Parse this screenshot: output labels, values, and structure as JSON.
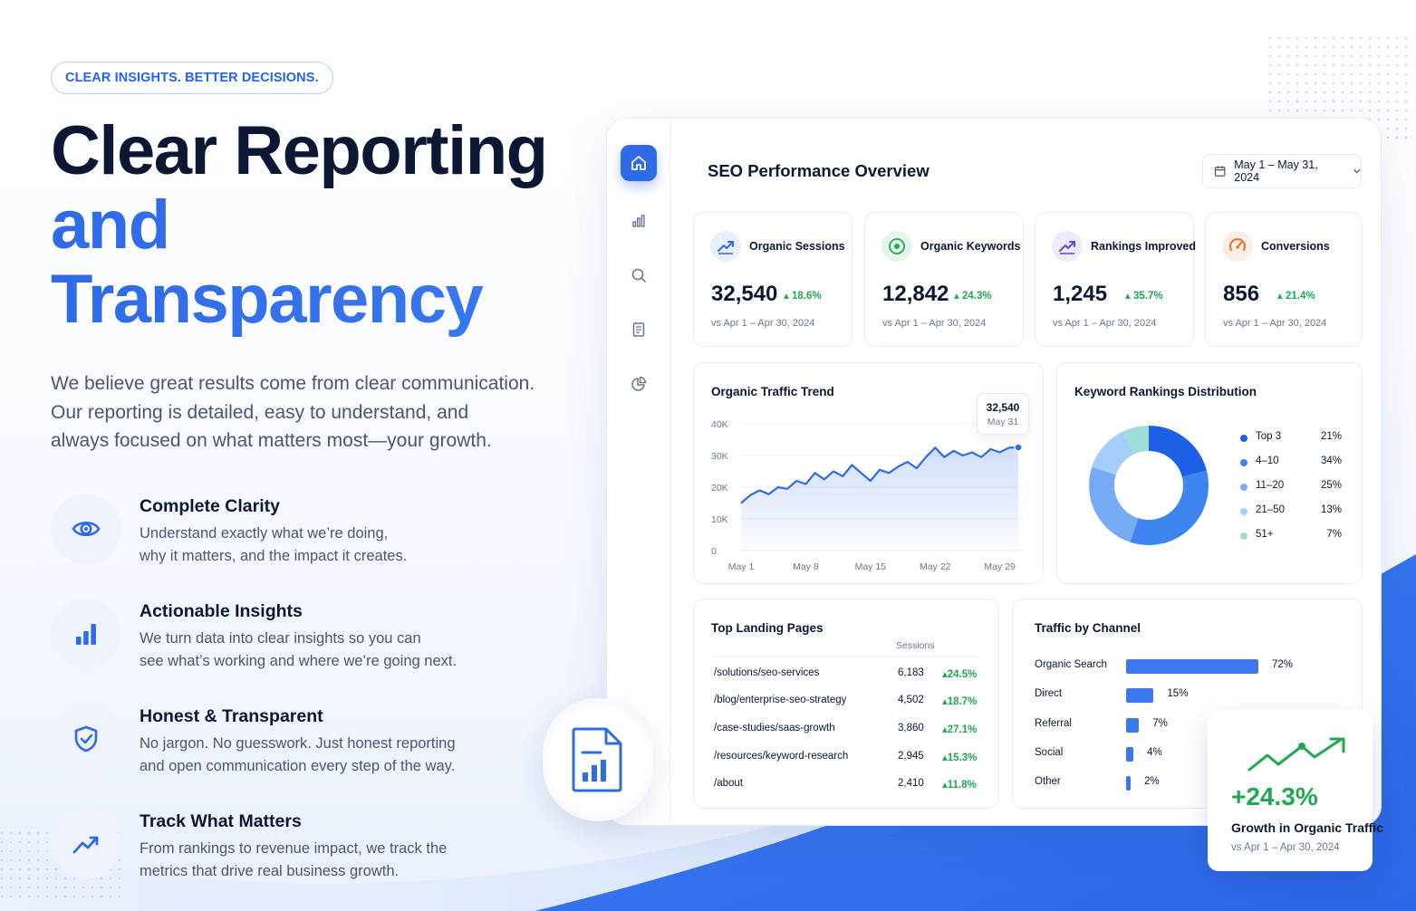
{
  "hero": {
    "tagline": "CLEAR INSIGHTS. BETTER DECISIONS.",
    "headline_line1": "Clear Reporting",
    "headline_line2": "and Transparency",
    "intro_lines": [
      "We believe great results come from clear communication.",
      "Our reporting is detailed, easy to understand, and",
      "always focused on what matters most—your growth."
    ]
  },
  "features": [
    {
      "icon": "eye-icon",
      "title": "Complete Clarity",
      "desc": [
        "Understand exactly what we’re doing,",
        "why it matters, and the impact it creates."
      ]
    },
    {
      "icon": "bar-chart-icon",
      "title": "Actionable Insights",
      "desc": [
        "We turn data into clear insights so you can",
        "see what’s working and where we’re going next."
      ]
    },
    {
      "icon": "shield-check-icon",
      "title": "Honest & Transparent",
      "desc": [
        "No jargon. No guesswork. Just honest reporting",
        "and open communication every step of the way."
      ]
    },
    {
      "icon": "trend-up-icon",
      "title": "Track What Matters",
      "desc": [
        "From rankings to revenue impact, we track the",
        "metrics that drive real business growth."
      ]
    }
  ],
  "dashboard": {
    "title": "SEO Performance Overview",
    "date_range": "May 1 – May 31, 2024",
    "sidebar_icons": [
      "home-icon",
      "bar-chart-icon",
      "search-icon",
      "document-icon",
      "pie-chart-icon"
    ],
    "kpis": [
      {
        "label": "Organic Sessions",
        "value": "32,540",
        "delta": "18.6%",
        "sub": "vs Apr 1 – Apr 30, 2024",
        "icon": "trend-up-icon",
        "color": "#2f6ae8"
      },
      {
        "label": "Organic Keywords",
        "value": "12,842",
        "delta": "24.3%",
        "sub": "vs Apr 1 – Apr 30, 2024",
        "icon": "target-icon",
        "color": "#1fa84f"
      },
      {
        "label": "Rankings Improved",
        "value": "1,245",
        "delta": "35.7%",
        "sub": "vs Apr 1 – Apr 30, 2024",
        "icon": "trend-up-icon",
        "color": "#5b4fe0"
      },
      {
        "label": "Conversions",
        "value": "856",
        "delta": "21.4%",
        "sub": "vs Apr 1 – Apr 30, 2024",
        "icon": "gauge-icon",
        "color": "#f06a26"
      }
    ],
    "traffic_card_title": "Organic Traffic Trend",
    "tooltip": {
      "value": "32,540",
      "date": "May 31"
    },
    "rankings_card_title": "Keyword Rankings Distribution",
    "landing": {
      "title": "Top Landing Pages",
      "col_header": "Sessions",
      "rows": [
        {
          "page": "/solutions/seo-services",
          "sessions": "6,183",
          "growth": "24.5%"
        },
        {
          "page": "/blog/enterprise-seo-strategy",
          "sessions": "4,502",
          "growth": "18.7%"
        },
        {
          "page": "/case-studies/saas-growth",
          "sessions": "3,860",
          "growth": "27.1%"
        },
        {
          "page": "/resources/keyword-research",
          "sessions": "2,945",
          "growth": "15.3%"
        },
        {
          "page": "/about",
          "sessions": "2,410",
          "growth": "11.8%"
        }
      ]
    },
    "channels": {
      "title": "Traffic by Channel",
      "rows": [
        {
          "name": "Organic Search",
          "value": 72,
          "label": "72%"
        },
        {
          "name": "Direct",
          "value": 15,
          "label": "15%"
        },
        {
          "name": "Referral",
          "value": 7,
          "label": "7%"
        },
        {
          "name": "Social",
          "value": 4,
          "label": "4%"
        },
        {
          "name": "Other",
          "value": 2,
          "label": "2%"
        }
      ]
    }
  },
  "growth_card": {
    "value": "+24.3%",
    "label": "Growth in Organic Traffic",
    "sub": "vs Apr 1 – Apr 30, 2024",
    "icon": "trend-up-icon"
  },
  "chart_data": [
    {
      "type": "area",
      "title": "Organic Traffic Trend",
      "x": [
        "May 1",
        "May 2",
        "May 3",
        "May 4",
        "May 5",
        "May 6",
        "May 7",
        "May 8",
        "May 9",
        "May 10",
        "May 11",
        "May 12",
        "May 13",
        "May 14",
        "May 15",
        "May 16",
        "May 17",
        "May 18",
        "May 19",
        "May 20",
        "May 21",
        "May 22",
        "May 23",
        "May 24",
        "May 25",
        "May 26",
        "May 27",
        "May 28",
        "May 29",
        "May 30",
        "May 31"
      ],
      "values": [
        15000,
        17500,
        19000,
        17800,
        20000,
        19500,
        22000,
        21000,
        24500,
        22500,
        25000,
        23500,
        27000,
        24500,
        22000,
        25500,
        24500,
        26500,
        28000,
        26000,
        29500,
        32500,
        29500,
        31500,
        30000,
        31000,
        29500,
        32000,
        31000,
        32500,
        32540
      ],
      "x_ticks": [
        "May 1",
        "May 8",
        "May 15",
        "May 22",
        "May 29"
      ],
      "y_ticks": [
        "0",
        "10K",
        "20K",
        "30K",
        "40K"
      ],
      "ylim": [
        0,
        40000
      ],
      "color": "#2f6ae8",
      "grid": true
    },
    {
      "type": "pie",
      "title": "Keyword Rankings Distribution",
      "categories": [
        "Top 3",
        "4–10",
        "11–20",
        "21–50",
        "51+"
      ],
      "values": [
        21,
        34,
        25,
        13,
        7
      ],
      "labels": [
        "21%",
        "34%",
        "25%",
        "13%",
        "7%"
      ],
      "colors": [
        "#1d5fe6",
        "#3f85f0",
        "#76acf6",
        "#a6cdf9",
        "#9fded6"
      ],
      "donut": true,
      "legend": "right"
    },
    {
      "type": "bar",
      "title": "Traffic by Channel",
      "categories": [
        "Organic Search",
        "Direct",
        "Referral",
        "Social",
        "Other"
      ],
      "values": [
        72,
        15,
        7,
        4,
        2
      ],
      "orientation": "horizontal",
      "color": "#3b78ee"
    }
  ]
}
